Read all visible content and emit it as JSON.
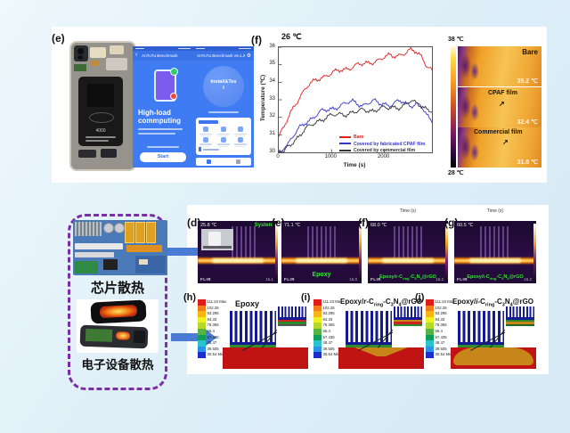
{
  "colors": {
    "app_blue": "#3f7bf2",
    "dashed_purple": "#7a2fa8",
    "arrow_blue": "#4a7cd6",
    "sim_red": "#c01414",
    "heatsink_blue": "#141a96",
    "spread_orange": "#c8861a",
    "ir_green_label": "#35e035"
  },
  "chart_data": {
    "type": "line",
    "title_annotation": "26 ℃",
    "xlabel": "Time (s)",
    "ylabel": "Temperature (℃)",
    "xlim": [
      0,
      2900
    ],
    "ylim": [
      30,
      36
    ],
    "xticks": [
      0,
      1000,
      2000
    ],
    "yticks": [
      30,
      31,
      32,
      33,
      34,
      35,
      36
    ],
    "grid": false,
    "legend_position": "bottom-right",
    "x": [
      0,
      100,
      200,
      300,
      400,
      500,
      600,
      700,
      800,
      900,
      1000,
      1100,
      1200,
      1300,
      1400,
      1500,
      1600,
      1700,
      1800,
      1900,
      2000,
      2100,
      2200,
      2300,
      2400,
      2500,
      2600,
      2700,
      2800,
      2900
    ],
    "series": [
      {
        "name": "Bare",
        "color": "#e02020",
        "values": [
          30.9,
          31.4,
          32.1,
          32.7,
          33.2,
          33.6,
          33.9,
          34.1,
          34.3,
          34.4,
          34.5,
          34.6,
          34.7,
          34.8,
          34.9,
          35.0,
          35.0,
          35.1,
          35.2,
          35.3,
          35.4,
          35.5,
          35.5,
          35.6,
          35.7,
          35.8,
          35.7,
          35.5,
          35.0,
          34.7
        ]
      },
      {
        "name": "Covered by fabricated CPAF film",
        "color": "#3535cc",
        "values": [
          30.0,
          30.2,
          30.6,
          31.0,
          31.4,
          31.7,
          31.9,
          32.1,
          32.3,
          32.4,
          32.5,
          32.6,
          32.7,
          32.8,
          32.9,
          32.8,
          32.7,
          32.8,
          32.9,
          32.8,
          32.8,
          32.7,
          32.8,
          32.9,
          32.8,
          32.7,
          32.8,
          32.6,
          32.1,
          31.7
        ]
      },
      {
        "name": "Covered by commercial film",
        "color": "#333333",
        "values": [
          30.0,
          30.1,
          30.4,
          30.7,
          31.0,
          31.3,
          31.5,
          31.7,
          31.9,
          32.0,
          32.1,
          32.1,
          32.2,
          32.2,
          32.3,
          32.3,
          32.4,
          32.4,
          32.4,
          32.5,
          32.5,
          32.5,
          32.6,
          32.6,
          32.7,
          32.9,
          32.8,
          32.7,
          32.5,
          32.3
        ]
      }
    ]
  },
  "panel_e": {
    "label": "(e)",
    "battery_text": "4000",
    "app1": {
      "header": "AnTuTu Benchmark",
      "title": "High-load\ncommputing",
      "button": "Start"
    },
    "app2": {
      "header": "AnTuTu Benchmark v9.1.2",
      "circle_line1": "Install&Tes",
      "circle_line2": "t",
      "gear": "⚙",
      "back": "‹"
    }
  },
  "panel_f": {
    "label": "(f)"
  },
  "thermal_strip": {
    "scale_top": "38 ℃",
    "scale_bottom": "28 ℃",
    "items": [
      {
        "name": "Bare",
        "temp": "35.2 ℃"
      },
      {
        "name": "CPAF film",
        "temp": "32.4 ℃",
        "arrow": "↗"
      },
      {
        "name": "Commercial film",
        "temp": "31.8 ℃",
        "arrow": "↗"
      }
    ]
  },
  "left_block": {
    "chip_label": "芯片散热",
    "device_label": "电子设备散热"
  },
  "ir_row": {
    "time_axis_label": "Time (s)",
    "panels": [
      {
        "label": "(d)",
        "temp": "25.8 ℃",
        "name_html": "System",
        "flir": "FLIR",
        "lo": "15.1"
      },
      {
        "label": "(e)",
        "temp": "71.1 ℃",
        "name_html": "Epoxy",
        "flir": "FLIR",
        "lo": "16.0"
      },
      {
        "label": "(f)",
        "temp": "68.0 ℃",
        "name_html": "Epoxy/r-C<sub>ring</sub>-C<sub>3</sub>N<sub>4</sub>@rGO",
        "flir": "FLIR",
        "lo": "16.2"
      },
      {
        "label": "(g)",
        "temp": "60.5 ℃",
        "name_html": "Epoxy/i-C<sub>ring</sub>-C<sub>3</sub>N<sub>4</sub>@rGO",
        "flir": "FLIR",
        "lo": "16.2"
      }
    ]
  },
  "sim_row": {
    "scale_values": [
      "111.23 Max",
      "102.26",
      "93.295",
      "84.33",
      "75.365",
      "66.4",
      "57.435",
      "48.47",
      "39.505",
      "30.54 Min"
    ],
    "scale_colors": [
      "#df1b1b",
      "#f07c1a",
      "#f7b515",
      "#eff020",
      "#b6d929",
      "#54b445",
      "#0f9d58",
      "#29c3cb",
      "#2a93e8",
      "#1b2ec9"
    ],
    "panels": [
      {
        "label": "(h)",
        "title_html": "Epoxy"
      },
      {
        "label": "(i)",
        "title_html": "Epoxy/<i>r</i>-C<sub>ring</sub>-C<sub>3</sub>N<sub>4</sub>@rGO"
      },
      {
        "label": "(j)",
        "title_html": "Epoxy/<i>i</i>-C<sub>ring</sub>-C<sub>3</sub>N<sub>4</sub>@rGO"
      }
    ]
  }
}
